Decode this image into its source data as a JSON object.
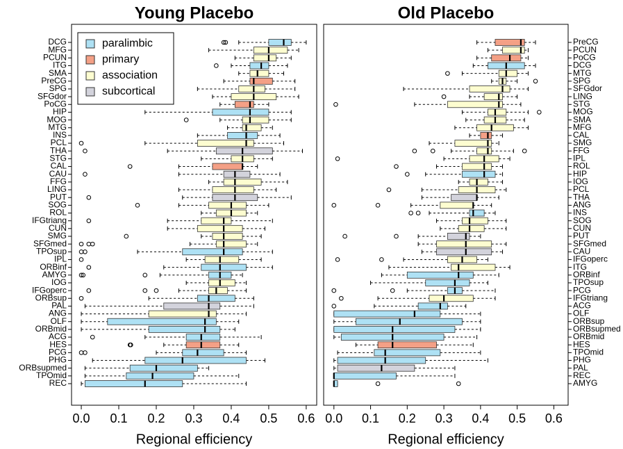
{
  "chart_data": [
    {
      "type": "box",
      "title": "Young Placebo",
      "xlabel": "Regional efficiency",
      "xlim": [
        -0.026,
        0.628
      ],
      "xticks": [
        {
          "value": 0,
          "label": "0.0"
        },
        0.1,
        0.2,
        0.3,
        0.4,
        0.5,
        0.6
      ],
      "label_side": "left",
      "legend": {
        "position": "upper left",
        "entries": [
          {
            "name": "paralimbic",
            "color": "#aee1f4"
          },
          {
            "name": "primary",
            "color": "#f4a086"
          },
          {
            "name": "association",
            "color": "#fdfdd0"
          },
          {
            "name": "subcortical",
            "color": "#d3d3dc"
          }
        ]
      },
      "categories": [
        "DCG",
        "MFG",
        "PCUN",
        "ITG",
        "SMA",
        "PreCG",
        "SPG",
        "SFGdor",
        "PoCG",
        "HIP",
        "MOG",
        "MTG",
        "INS",
        "PCL",
        "THA",
        "STG",
        "CAL",
        "CAU",
        "FFG",
        "LING",
        "PUT",
        "SOG",
        "ROL",
        "IFGtriang",
        "CUN",
        "SMG",
        "SFGmed",
        "TPOsup",
        "IPL",
        "ORBinf",
        "AMYG",
        "IOG",
        "IFGoperc",
        "ORBsup",
        "PAL",
        "ANG",
        "OLF",
        "ORBmid",
        "ACG",
        "HES",
        "PCG",
        "PHG",
        "ORBsupmed",
        "TPOmid",
        "REC"
      ],
      "box_stats": [
        [
          0.42,
          0.5,
          0.54,
          0.56,
          0.6
        ],
        [
          0.34,
          0.46,
          0.5,
          0.55,
          0.58
        ],
        [
          0.41,
          0.46,
          0.5,
          0.52,
          0.56
        ],
        [
          0.4,
          0.45,
          0.48,
          0.5,
          0.55
        ],
        [
          0.42,
          0.45,
          0.47,
          0.5,
          0.54
        ],
        [
          0.38,
          0.45,
          0.46,
          0.51,
          0.57
        ],
        [
          0.31,
          0.42,
          0.46,
          0.49,
          0.57
        ],
        [
          0.35,
          0.4,
          0.46,
          0.52,
          0.58
        ],
        [
          0.37,
          0.41,
          0.45,
          0.46,
          0.5
        ],
        [
          0.17,
          0.35,
          0.45,
          0.5,
          0.56
        ],
        [
          0.37,
          0.43,
          0.45,
          0.5,
          0.56
        ],
        [
          0.39,
          0.43,
          0.44,
          0.48,
          0.51
        ],
        [
          0.31,
          0.39,
          0.44,
          0.47,
          0.53
        ],
        [
          0.17,
          0.31,
          0.44,
          0.46,
          0.54
        ],
        [
          0.23,
          0.36,
          0.43,
          0.51,
          0.59
        ],
        [
          0.32,
          0.4,
          0.43,
          0.46,
          0.51
        ],
        [
          0.26,
          0.35,
          0.43,
          0.43,
          0.47
        ],
        [
          0.26,
          0.38,
          0.41,
          0.45,
          0.53
        ],
        [
          0.34,
          0.38,
          0.41,
          0.48,
          0.55
        ],
        [
          0.26,
          0.35,
          0.41,
          0.46,
          0.52
        ],
        [
          0.27,
          0.35,
          0.41,
          0.47,
          0.56
        ],
        [
          0.26,
          0.34,
          0.4,
          0.44,
          0.5
        ],
        [
          0.32,
          0.36,
          0.4,
          0.44,
          0.47
        ],
        [
          0.23,
          0.32,
          0.38,
          0.4,
          0.51
        ],
        [
          0.23,
          0.31,
          0.38,
          0.43,
          0.49
        ],
        [
          0.32,
          0.35,
          0.38,
          0.43,
          0.48
        ],
        [
          0.29,
          0.36,
          0.38,
          0.44,
          0.47
        ],
        [
          0.15,
          0.27,
          0.38,
          0.43,
          0.51
        ],
        [
          0.28,
          0.33,
          0.37,
          0.42,
          0.48
        ],
        [
          0.22,
          0.32,
          0.37,
          0.44,
          0.51
        ],
        [
          0.21,
          0.34,
          0.37,
          0.4,
          0.43
        ],
        [
          0.28,
          0.34,
          0.37,
          0.41,
          0.44
        ],
        [
          0.26,
          0.34,
          0.36,
          0.39,
          0.44
        ],
        [
          0.18,
          0.31,
          0.34,
          0.41,
          0.46
        ],
        [
          0.01,
          0.22,
          0.34,
          0.37,
          0.46
        ],
        [
          0,
          0.18,
          0.34,
          0.36,
          0.44
        ],
        [
          0,
          0.07,
          0.33,
          0.36,
          0.42
        ],
        [
          0,
          0.18,
          0.33,
          0.37,
          0.41
        ],
        [
          0.17,
          0.28,
          0.32,
          0.37,
          0.48
        ],
        [
          0.22,
          0.28,
          0.32,
          0.37,
          0.42
        ],
        [
          0.2,
          0.27,
          0.31,
          0.38,
          0.44
        ],
        [
          0.03,
          0.17,
          0.27,
          0.44,
          0.49
        ],
        [
          0.01,
          0.13,
          0.2,
          0.31,
          0.34
        ],
        [
          0.01,
          0.12,
          0.19,
          0.3,
          0.42
        ],
        [
          0,
          0.01,
          0.17,
          0.27,
          0.44
        ]
      ],
      "fliers": [
        [
          0.38,
          0.385
        ],
        [],
        [],
        [
          0.36
        ],
        [],
        [],
        [],
        [],
        [],
        [],
        [
          0.28
        ],
        [],
        [],
        [
          0
        ],
        [
          0.01
        ],
        [],
        [
          0.13
        ],
        [
          0.01
        ],
        [],
        [],
        [
          0.02
        ],
        [
          0.15
        ],
        [],
        [
          0.02
        ],
        [],
        [
          0.12
        ],
        [
          0,
          0.02,
          0.03
        ],
        [
          0,
          0.01
        ],
        [
          0
        ],
        [
          0.02
        ],
        [
          0,
          0.005,
          0.17
        ],
        [],
        [
          0.02,
          0.17,
          0.2
        ],
        [
          0
        ],
        [],
        [],
        [],
        [],
        [
          0.03
        ],
        [
          0.13,
          0.132
        ],
        [
          0,
          0.01
        ],
        [],
        [],
        [],
        []
      ],
      "colors": [
        "#aee1f4",
        "#fdfdd0",
        "#fdfdd0",
        "#aee1f4",
        "#fdfdd0",
        "#f4a086",
        "#fdfdd0",
        "#fdfdd0",
        "#f4a086",
        "#aee1f4",
        "#fdfdd0",
        "#fdfdd0",
        "#aee1f4",
        "#fdfdd0",
        "#d3d3dc",
        "#fdfdd0",
        "#f4a086",
        "#d3d3dc",
        "#fdfdd0",
        "#fdfdd0",
        "#d3d3dc",
        "#fdfdd0",
        "#fdfdd0",
        "#fdfdd0",
        "#fdfdd0",
        "#fdfdd0",
        "#fdfdd0",
        "#aee1f4",
        "#fdfdd0",
        "#aee1f4",
        "#aee1f4",
        "#fdfdd0",
        "#fdfdd0",
        "#aee1f4",
        "#d3d3dc",
        "#fdfdd0",
        "#aee1f4",
        "#aee1f4",
        "#aee1f4",
        "#f4a086",
        "#aee1f4",
        "#aee1f4",
        "#aee1f4",
        "#aee1f4",
        "#aee1f4"
      ]
    },
    {
      "type": "box",
      "title": "Old Placebo",
      "xlabel": "Regional efficiency",
      "xlim": [
        -0.028,
        0.639
      ],
      "xticks": [
        {
          "value": 0,
          "label": "0.0"
        },
        0.1,
        0.2,
        0.3,
        0.4,
        0.5,
        0.6
      ],
      "label_side": "right",
      "categories": [
        "PreCG",
        "PCUN",
        "PoCG",
        "DCG",
        "MTG",
        "SPG",
        "SFGdor",
        "LING",
        "STG",
        "MOG",
        "SMA",
        "MFG",
        "CAL",
        "SMG",
        "FFG",
        "IPL",
        "ROL",
        "HIP",
        "IOG",
        "PCL",
        "THA",
        "ANG",
        "INS",
        "SOG",
        "CUN",
        "PUT",
        "SFGmed",
        "CAU",
        "IFGoperc",
        "ITG",
        "ORBinf",
        "TPOsup",
        "PCG",
        "IFGtriang",
        "ACG",
        "OLF",
        "ORBsup",
        "ORBsupmed",
        "ORBmid",
        "HES",
        "TPOmid",
        "PHG",
        "PAL",
        "REC",
        "AMYG"
      ],
      "box_stats": [
        [
          0.39,
          0.44,
          0.51,
          0.52,
          0.55
        ],
        [
          0.42,
          0.46,
          0.51,
          0.52,
          0.53
        ],
        [
          0.39,
          0.43,
          0.48,
          0.51,
          0.53
        ],
        [
          0.38,
          0.42,
          0.47,
          0.52,
          0.55
        ],
        [
          0.35,
          0.45,
          0.47,
          0.5,
          0.53
        ],
        [
          0.43,
          0.45,
          0.46,
          0.47,
          0.5
        ],
        [
          0.19,
          0.37,
          0.46,
          0.48,
          0.53
        ],
        [
          0.37,
          0.41,
          0.45,
          0.46,
          0.5
        ],
        [
          0.22,
          0.31,
          0.45,
          0.46,
          0.51
        ],
        [
          0.35,
          0.42,
          0.44,
          0.47,
          0.53
        ],
        [
          0.36,
          0.41,
          0.44,
          0.47,
          0.52
        ],
        [
          0.33,
          0.39,
          0.43,
          0.49,
          0.53
        ],
        [
          0.37,
          0.4,
          0.42,
          0.43,
          0.46
        ],
        [
          0.26,
          0.33,
          0.42,
          0.43,
          0.45
        ],
        [
          0.32,
          0.39,
          0.42,
          0.43,
          0.49
        ],
        [
          0.3,
          0.37,
          0.41,
          0.45,
          0.48
        ],
        [
          0.28,
          0.35,
          0.41,
          0.43,
          0.46
        ],
        [
          0.25,
          0.35,
          0.41,
          0.44,
          0.46
        ],
        [
          0.34,
          0.37,
          0.39,
          0.42,
          0.46
        ],
        [
          0.24,
          0.34,
          0.39,
          0.44,
          0.47
        ],
        [
          0.24,
          0.32,
          0.39,
          0.39,
          0.45
        ],
        [
          0.21,
          0.29,
          0.38,
          0.38,
          0.43
        ],
        [
          0.26,
          0.37,
          0.38,
          0.41,
          0.44
        ],
        [
          0.28,
          0.35,
          0.37,
          0.42,
          0.47
        ],
        [
          0.29,
          0.34,
          0.37,
          0.41,
          0.47
        ],
        [
          0.23,
          0.31,
          0.36,
          0.37,
          0.4
        ],
        [
          0.23,
          0.28,
          0.36,
          0.43,
          0.47
        ],
        [
          0.24,
          0.28,
          0.36,
          0.43,
          0.46
        ],
        [
          0.19,
          0.31,
          0.35,
          0.39,
          0.42
        ],
        [
          0.15,
          0.32,
          0.34,
          0.44,
          0.48
        ],
        [
          0.13,
          0.2,
          0.34,
          0.38,
          0.45
        ],
        [
          0.1,
          0.25,
          0.33,
          0.37,
          0.42
        ],
        [
          0.2,
          0.31,
          0.33,
          0.35,
          0.44
        ],
        [
          0.12,
          0.26,
          0.3,
          0.38,
          0.44
        ],
        [
          0.11,
          0.23,
          0.29,
          0.31,
          0.36
        ],
        [
          0,
          0,
          0.22,
          0.29,
          0.4
        ],
        [
          0,
          0.06,
          0.18,
          0.35,
          0.4
        ],
        [
          0,
          0,
          0.16,
          0.33,
          0.4
        ],
        [
          0,
          0.02,
          0.16,
          0.3,
          0.39
        ],
        [
          0.06,
          0.12,
          0.16,
          0.28,
          0.38
        ],
        [
          0.01,
          0.11,
          0.14,
          0.29,
          0.4
        ],
        [
          0,
          0.01,
          0.14,
          0.25,
          0.42
        ],
        [
          0,
          0.01,
          0.13,
          0.22,
          0.33
        ],
        [
          0,
          0,
          0,
          0.17,
          0.33
        ],
        [
          0,
          0,
          0,
          0.01,
          0.01
        ]
      ],
      "fliers": [
        [],
        [],
        [],
        [],
        [
          0.31
        ],
        [
          0.55
        ],
        [],
        [
          0.3
        ],
        [
          0.005
        ],
        [
          0.56
        ],
        [],
        [],
        [],
        [],
        [
          0.22,
          0.27,
          0.52
        ],
        [
          0.01
        ],
        [
          0.17
        ],
        [
          0.2
        ],
        [],
        [
          0.15
        ],
        [],
        [
          0,
          0.12
        ],
        [
          0.21,
          0.23
        ],
        [],
        [],
        [
          0.03,
          0.17
        ],
        [],
        [],
        [
          0.01,
          0.13
        ],
        [],
        [],
        [],
        [
          0,
          0.16
        ],
        [
          0.02
        ],
        [
          0
        ],
        [],
        [],
        [],
        [],
        [],
        [],
        [],
        [],
        [],
        [
          0.12,
          0.34
        ]
      ],
      "colors": [
        "#f4a086",
        "#fdfdd0",
        "#f4a086",
        "#aee1f4",
        "#fdfdd0",
        "#fdfdd0",
        "#fdfdd0",
        "#fdfdd0",
        "#fdfdd0",
        "#fdfdd0",
        "#fdfdd0",
        "#fdfdd0",
        "#f4a086",
        "#fdfdd0",
        "#fdfdd0",
        "#fdfdd0",
        "#fdfdd0",
        "#aee1f4",
        "#fdfdd0",
        "#fdfdd0",
        "#d3d3dc",
        "#fdfdd0",
        "#aee1f4",
        "#fdfdd0",
        "#fdfdd0",
        "#d3d3dc",
        "#fdfdd0",
        "#d3d3dc",
        "#fdfdd0",
        "#fdfdd0",
        "#aee1f4",
        "#aee1f4",
        "#aee1f4",
        "#fdfdd0",
        "#aee1f4",
        "#aee1f4",
        "#aee1f4",
        "#aee1f4",
        "#aee1f4",
        "#f4a086",
        "#aee1f4",
        "#aee1f4",
        "#d3d3dc",
        "#aee1f4",
        "#aee1f4"
      ]
    }
  ]
}
